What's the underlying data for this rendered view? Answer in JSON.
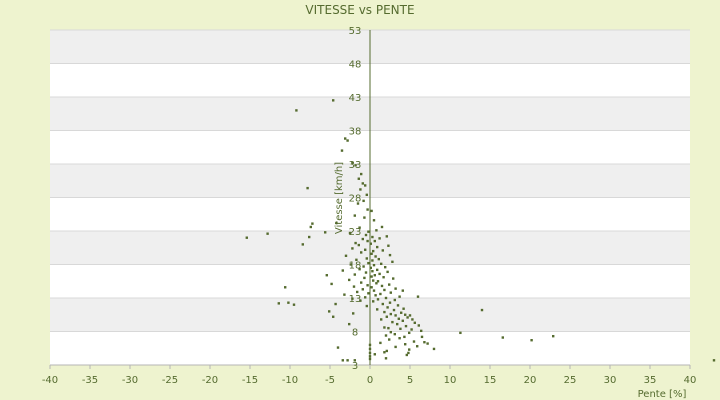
{
  "chart_data": {
    "type": "scatter",
    "title": "VITESSE vs PENTE",
    "xlabel": "Pente [%]",
    "ylabel": "Vitesse [km/h]",
    "xlim": [
      -40,
      40
    ],
    "ylim": [
      3,
      53
    ],
    "x_ticks": [
      "-40",
      "-35",
      "-30",
      "-25",
      "-20",
      "-15",
      "-10",
      "-5",
      "0",
      "5",
      "10",
      "15",
      "20",
      "25",
      "30",
      "35",
      "40"
    ],
    "y_ticks": [
      "3",
      "8",
      "13",
      "18",
      "23",
      "28",
      "33",
      "38",
      "43",
      "48",
      "53"
    ],
    "grid": "horizontal-bands",
    "colors": {
      "marker": "#556b2f",
      "band": "#efefef",
      "plot_bg": "#ffffff"
    },
    "points": [
      [
        -4.6,
        42.5
      ],
      [
        -9.2,
        41
      ],
      [
        -3.1,
        36.8
      ],
      [
        -2.8,
        36.5
      ],
      [
        -3.5,
        35
      ],
      [
        -2.2,
        33.2
      ],
      [
        -1.8,
        32.8
      ],
      [
        -1.1,
        31.5
      ],
      [
        -1.4,
        30.8
      ],
      [
        -0.9,
        30.1
      ],
      [
        -0.6,
        29.8
      ],
      [
        -1.2,
        29.2
      ],
      [
        -0.4,
        28.4
      ],
      [
        -7.8,
        29.4
      ],
      [
        -0.8,
        27.5
      ],
      [
        -1.5,
        27.1
      ],
      [
        -0.3,
        26.2
      ],
      [
        0.2,
        26
      ],
      [
        -1.9,
        25.3
      ],
      [
        -0.7,
        25
      ],
      [
        0.5,
        24.6
      ],
      [
        -4.2,
        24.2
      ],
      [
        -7.2,
        24.1
      ],
      [
        -7.4,
        23.6
      ],
      [
        -1.3,
        23.5
      ],
      [
        0.8,
        23.1
      ],
      [
        -0.2,
        22.9
      ],
      [
        -5.6,
        22.8
      ],
      [
        -12.8,
        22.6
      ],
      [
        -2.5,
        22.7
      ],
      [
        -7.6,
        22.1
      ],
      [
        -15.4,
        22
      ],
      [
        1.5,
        23.6
      ],
      [
        -0.5,
        22.4
      ],
      [
        0.3,
        22.1
      ],
      [
        2.1,
        22.2
      ],
      [
        -0.9,
        21.8
      ],
      [
        -8.4,
        21
      ],
      [
        -1.8,
        21.2
      ],
      [
        0.6,
        21.5
      ],
      [
        1.2,
        21.9
      ],
      [
        -0.3,
        21.5
      ],
      [
        0.1,
        21.1
      ],
      [
        -1.4,
        20.9
      ],
      [
        2.3,
        20.8
      ],
      [
        0.9,
        20.6
      ],
      [
        -2.2,
        20.4
      ],
      [
        -0.6,
        20.2
      ],
      [
        0.4,
        20
      ],
      [
        1.6,
        20.1
      ],
      [
        -1.1,
        19.8
      ],
      [
        0.2,
        19.6
      ],
      [
        2.5,
        19.4
      ],
      [
        -3,
        19.3
      ],
      [
        0.7,
        19.2
      ],
      [
        -0.4,
        18.9
      ],
      [
        1.1,
        18.8
      ],
      [
        -1.7,
        18.7
      ],
      [
        0.3,
        18.6
      ],
      [
        2.8,
        18.4
      ],
      [
        -0.2,
        18.2
      ],
      [
        1.4,
        18.1
      ],
      [
        -2.4,
        18
      ],
      [
        0.5,
        17.9
      ],
      [
        -0.8,
        17.7
      ],
      [
        1.9,
        17.6
      ],
      [
        0.1,
        17.5
      ],
      [
        -1.3,
        17.3
      ],
      [
        0.9,
        17.2
      ],
      [
        -3.4,
        17.1
      ],
      [
        0.3,
        17
      ],
      [
        2.2,
        16.9
      ],
      [
        -0.5,
        16.8
      ],
      [
        1.2,
        16.6
      ],
      [
        -1.9,
        16.5
      ],
      [
        0.6,
        16.4
      ],
      [
        -5.4,
        16.4
      ],
      [
        0.2,
        16.2
      ],
      [
        1.7,
        16.1
      ],
      [
        -0.7,
        16
      ],
      [
        2.9,
        15.9
      ],
      [
        -2.6,
        15.7
      ],
      [
        0.4,
        15.6
      ],
      [
        1,
        15.5
      ],
      [
        -1.1,
        15.3
      ],
      [
        -4.8,
        15.1
      ],
      [
        0.8,
        15.2
      ],
      [
        2.4,
        15
      ],
      [
        -0.3,
        14.9
      ],
      [
        1.5,
        14.8
      ],
      [
        -2,
        14.7
      ],
      [
        0.2,
        14.6
      ],
      [
        -10.6,
        14.6
      ],
      [
        3.2,
        14.4
      ],
      [
        -0.9,
        14.3
      ],
      [
        1.8,
        14.2
      ],
      [
        0.5,
        14.1
      ],
      [
        -1.6,
        13.9
      ],
      [
        2.6,
        13.8
      ],
      [
        -0.2,
        13.7
      ],
      [
        4.1,
        14.1
      ],
      [
        1.3,
        13.6
      ],
      [
        -3.2,
        13.5
      ],
      [
        0.7,
        13.4
      ],
      [
        3.7,
        13.2
      ],
      [
        -0.6,
        13.1
      ],
      [
        2,
        13
      ],
      [
        -2.2,
        12.9
      ],
      [
        1,
        12.8
      ],
      [
        3.1,
        12.7
      ],
      [
        6,
        13.2
      ],
      [
        -1.2,
        12.6
      ],
      [
        0.4,
        12.5
      ],
      [
        -11.4,
        12.2
      ],
      [
        -10.2,
        12.3
      ],
      [
        -9.5,
        12
      ],
      [
        2.5,
        12.3
      ],
      [
        -4.3,
        12.1
      ],
      [
        1.6,
        12.1
      ],
      [
        3.5,
        11.9
      ],
      [
        -0.4,
        11.8
      ],
      [
        2.2,
        11.6
      ],
      [
        4.2,
        11.4
      ],
      [
        0.9,
        11.3
      ],
      [
        -5.1,
        11
      ],
      [
        3,
        11.2
      ],
      [
        14,
        11.2
      ],
      [
        1.8,
        10.9
      ],
      [
        -2.1,
        10.7
      ],
      [
        3.9,
        10.8
      ],
      [
        2.6,
        10.6
      ],
      [
        4.4,
        10.5
      ],
      [
        3.2,
        10.4
      ],
      [
        5,
        10.4
      ],
      [
        4.7,
        10.1
      ],
      [
        2.1,
        10.2
      ],
      [
        3.6,
        9.9
      ],
      [
        -4.6,
        10.2
      ],
      [
        5.3,
        9.8
      ],
      [
        1.4,
        9.8
      ],
      [
        4.1,
        9.6
      ],
      [
        2.8,
        9.4
      ],
      [
        5.6,
        9.3
      ],
      [
        3.4,
        9.1
      ],
      [
        -2.6,
        9.1
      ],
      [
        6.1,
        8.9
      ],
      [
        4.5,
        8.8
      ],
      [
        1.8,
        8.6
      ],
      [
        2.3,
        8.5
      ],
      [
        3.8,
        8.4
      ],
      [
        5.2,
        8.3
      ],
      [
        6.4,
        8.1
      ],
      [
        2.6,
        7.9
      ],
      [
        4.9,
        7.8
      ],
      [
        3.1,
        7.6
      ],
      [
        11.3,
        7.8
      ],
      [
        2,
        7.4
      ],
      [
        4.3,
        7.2
      ],
      [
        6.5,
        7.2
      ],
      [
        16.6,
        7.1
      ],
      [
        22.9,
        7.3
      ],
      [
        3.7,
        7
      ],
      [
        20.2,
        6.7
      ],
      [
        2.4,
        6.8
      ],
      [
        5.5,
        6.5
      ],
      [
        6.8,
        6.4
      ],
      [
        1.3,
        6.3
      ],
      [
        4.4,
        6.1
      ],
      [
        7.2,
        6.2
      ],
      [
        5.9,
        5.8
      ],
      [
        3.2,
        5.7
      ],
      [
        8,
        5.4
      ],
      [
        -4,
        5.6
      ],
      [
        4.9,
        5.3
      ],
      [
        1.8,
        4.9
      ],
      [
        2.1,
        5.1
      ],
      [
        4.8,
        4.8
      ],
      [
        4.6,
        4.5
      ],
      [
        0.6,
        4.6
      ],
      [
        2,
        4
      ],
      [
        -3.4,
        3.7
      ],
      [
        -2.8,
        3.7
      ],
      [
        -1.9,
        3.7
      ],
      [
        0,
        3.9
      ],
      [
        0,
        4.3
      ],
      [
        0,
        4.8
      ],
      [
        0,
        5.4
      ],
      [
        0,
        6
      ],
      [
        43,
        3.7
      ]
    ]
  }
}
